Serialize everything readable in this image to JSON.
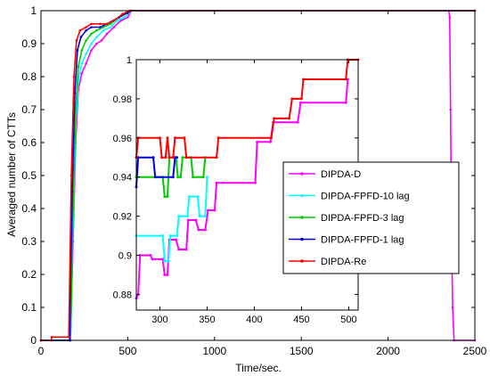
{
  "chart_data": [
    {
      "type": "line",
      "xlabel": "Time/sec.",
      "ylabel": "Averaged number of CTTs",
      "xlim": [
        0,
        2500
      ],
      "ylim": [
        0,
        1
      ],
      "xticks": [
        "0",
        "500",
        "1000",
        "1500",
        "2000",
        "2500"
      ],
      "yticks": [
        "0",
        "0.1",
        "0.2",
        "0.3",
        "0.4",
        "0.5",
        "0.6",
        "0.7",
        "0.8",
        "0.9",
        "1"
      ],
      "grid": false,
      "series": [
        {
          "name": "DIPDA-D",
          "color": "#ff00ff",
          "marker": "dot",
          "points": [
            [
              0,
              0
            ],
            [
              170,
              0
            ],
            [
              185,
              0.3
            ],
            [
              200,
              0.6
            ],
            [
              215,
              0.76
            ],
            [
              235,
              0.81
            ],
            [
              260,
              0.84
            ],
            [
              290,
              0.88
            ],
            [
              320,
              0.9
            ],
            [
              350,
              0.91
            ],
            [
              380,
              0.93
            ],
            [
              420,
              0.95
            ],
            [
              460,
              0.97
            ],
            [
              500,
              0.98
            ],
            [
              520,
              1
            ],
            [
              2350,
              1
            ],
            [
              2355,
              0.98
            ],
            [
              2360,
              0.7
            ],
            [
              2365,
              0.35
            ],
            [
              2372,
              0.1
            ],
            [
              2380,
              0
            ],
            [
              2500,
              0
            ]
          ]
        },
        {
          "name": "DIPDA-FPFD-10 lag",
          "color": "#00ffff",
          "marker": "dot",
          "points": [
            [
              0,
              0
            ],
            [
              170,
              0
            ],
            [
              185,
              0.35
            ],
            [
              200,
              0.65
            ],
            [
              215,
              0.79
            ],
            [
              235,
              0.84
            ],
            [
              260,
              0.87
            ],
            [
              290,
              0.9
            ],
            [
              320,
              0.92
            ],
            [
              360,
              0.94
            ],
            [
              400,
              0.95
            ],
            [
              440,
              0.97
            ],
            [
              480,
              0.98
            ],
            [
              520,
              1
            ],
            [
              2500,
              1
            ]
          ]
        },
        {
          "name": "DIPDA-FPFD-3 lag",
          "color": "#00cc00",
          "marker": "dot",
          "points": [
            [
              0,
              0
            ],
            [
              170,
              0
            ],
            [
              185,
              0.4
            ],
            [
              200,
              0.7
            ],
            [
              215,
              0.83
            ],
            [
              235,
              0.88
            ],
            [
              260,
              0.91
            ],
            [
              290,
              0.93
            ],
            [
              320,
              0.94
            ],
            [
              360,
              0.95
            ],
            [
              400,
              0.96
            ],
            [
              450,
              0.98
            ],
            [
              520,
              1
            ],
            [
              2500,
              1
            ]
          ]
        },
        {
          "name": "DIPDA-FPFD-1 lag",
          "color": "#0000dd",
          "marker": "dot",
          "points": [
            [
              0,
              0
            ],
            [
              165,
              0
            ],
            [
              180,
              0.45
            ],
            [
              195,
              0.75
            ],
            [
              210,
              0.88
            ],
            [
              230,
              0.92
            ],
            [
              260,
              0.94
            ],
            [
              290,
              0.95
            ],
            [
              340,
              0.95
            ],
            [
              380,
              0.96
            ],
            [
              450,
              0.98
            ],
            [
              520,
              1
            ],
            [
              2500,
              1
            ]
          ]
        },
        {
          "name": "DIPDA-Re",
          "color": "#ff0000",
          "marker": "dot",
          "points": [
            [
              0,
              0
            ],
            [
              60,
              0
            ],
            [
              62,
              0.01
            ],
            [
              160,
              0.01
            ],
            [
              175,
              0.5
            ],
            [
              190,
              0.8
            ],
            [
              205,
              0.91
            ],
            [
              225,
              0.94
            ],
            [
              260,
              0.95
            ],
            [
              290,
              0.96
            ],
            [
              340,
              0.96
            ],
            [
              380,
              0.96
            ],
            [
              420,
              0.97
            ],
            [
              470,
              0.99
            ],
            [
              510,
              1
            ],
            [
              2500,
              1
            ]
          ]
        }
      ],
      "legend": "lower-right of inset",
      "legend_entries": [
        "DIPDA-D",
        "DIPDA-FPFD-10 lag",
        "DIPDA-FPFD-3 lag",
        "DIPDA-FPFD-1 lag",
        "DIPDA-Re"
      ]
    },
    {
      "type": "line",
      "role": "inset zoom",
      "xlim": [
        275,
        510
      ],
      "ylim": [
        0.872,
        1
      ],
      "xticks": [
        "300",
        "350",
        "400",
        "450",
        "500"
      ],
      "yticks": [
        "0.88",
        "0.9",
        "0.92",
        "0.94",
        "0.96",
        "0.98",
        "1"
      ],
      "grid": false,
      "series": [
        {
          "name": "DIPDA-D",
          "color": "#ff00ff",
          "points": [
            [
              275,
              0.878
            ],
            [
              277,
              0.88
            ],
            [
              279,
              0.9
            ],
            [
              290,
              0.9
            ],
            [
              292,
              0.898
            ],
            [
              303,
              0.898
            ],
            [
              305,
              0.89
            ],
            [
              308,
              0.89
            ],
            [
              310,
              0.908
            ],
            [
              317,
              0.908
            ],
            [
              320,
              0.903
            ],
            [
              328,
              0.903
            ],
            [
              330,
              0.918
            ],
            [
              338,
              0.918
            ],
            [
              341,
              0.913
            ],
            [
              348,
              0.913
            ],
            [
              351,
              0.923
            ],
            [
              358,
              0.923
            ],
            [
              360,
              0.937
            ],
            [
              401,
              0.937
            ],
            [
              403,
              0.958
            ],
            [
              417,
              0.958
            ],
            [
              420,
              0.968
            ],
            [
              446,
              0.968
            ],
            [
              449,
              0.978
            ],
            [
              497,
              0.978
            ],
            [
              499,
              0.99
            ]
          ]
        },
        {
          "name": "DIPDA-FPFD-10 lag",
          "color": "#00ffff",
          "points": [
            [
              275,
              0.91
            ],
            [
              303,
              0.91
            ],
            [
              305,
              0.897
            ],
            [
              309,
              0.897
            ],
            [
              311,
              0.91
            ],
            [
              318,
              0.91
            ],
            [
              320,
              0.92
            ],
            [
              329,
              0.92
            ],
            [
              331,
              0.93
            ],
            [
              340,
              0.93
            ],
            [
              342,
              0.92
            ],
            [
              348,
              0.92
            ],
            [
              350,
              0.94
            ]
          ]
        },
        {
          "name": "DIPDA-FPFD-3 lag",
          "color": "#00cc00",
          "points": [
            [
              275,
              0.94
            ],
            [
              303,
              0.94
            ],
            [
              305,
              0.93
            ],
            [
              308,
              0.93
            ],
            [
              310,
              0.95
            ],
            [
              317,
              0.95
            ],
            [
              319,
              0.94
            ],
            [
              322,
              0.94
            ],
            [
              324,
              0.95
            ],
            [
              333,
              0.95
            ],
            [
              335,
              0.94
            ],
            [
              346,
              0.94
            ],
            [
              348,
              0.95
            ]
          ]
        },
        {
          "name": "DIPDA-FPFD-1 lag",
          "color": "#0000dd",
          "points": [
            [
              275,
              0.935
            ],
            [
              277,
              0.95
            ],
            [
              293,
              0.95
            ],
            [
              295,
              0.94
            ],
            [
              314,
              0.94
            ],
            [
              316,
              0.95
            ],
            [
              318,
              0.95
            ]
          ]
        },
        {
          "name": "DIPDA-Re",
          "color": "#ff0000",
          "points": [
            [
              275,
              0.95
            ],
            [
              277,
              0.96
            ],
            [
              300,
              0.96
            ],
            [
              302,
              0.95
            ],
            [
              306,
              0.95
            ],
            [
              308,
              0.96
            ],
            [
              310,
              0.95
            ],
            [
              314,
              0.95
            ],
            [
              316,
              0.96
            ],
            [
              326,
              0.96
            ],
            [
              328,
              0.95
            ],
            [
              360,
              0.95
            ],
            [
              362,
              0.96
            ],
            [
              418,
              0.96
            ],
            [
              421,
              0.97
            ],
            [
              437,
              0.97
            ],
            [
              440,
              0.98
            ],
            [
              450,
              0.98
            ],
            [
              452,
              0.99
            ],
            [
              497,
              0.99
            ],
            [
              499,
              1
            ],
            [
              510,
              1
            ]
          ]
        }
      ]
    }
  ]
}
